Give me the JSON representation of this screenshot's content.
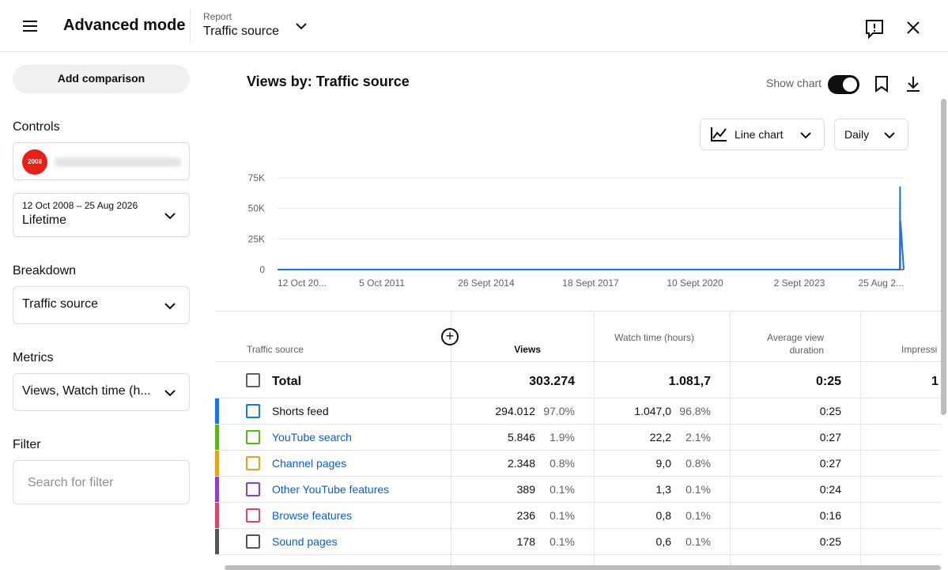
{
  "header": {
    "title": "Advanced mode",
    "report_label": "Report",
    "report_name": "Traffic source"
  },
  "sidebar": {
    "add_comparison": "Add comparison",
    "controls_label": "Controls",
    "channel_badge": "2008",
    "date_range": "12 Oct 2008 – 25 Aug 2026",
    "period": "Lifetime",
    "breakdown_label": "Breakdown",
    "breakdown_value": "Traffic source",
    "metrics_label": "Metrics",
    "metrics_value": "Views, Watch time (h...",
    "filter_label": "Filter",
    "filter_placeholder": "Search for filter"
  },
  "toolbar": {
    "title": "Views by: Traffic source",
    "show_chart": "Show chart",
    "chart_type": "Line chart",
    "granularity": "Daily"
  },
  "chart_data": {
    "type": "line",
    "x": [
      "2008-10-12",
      "2026-07-15",
      "2026-07-18",
      "2026-07-20",
      "2026-07-22",
      "2026-08-25"
    ],
    "series": [
      {
        "color": "#1a73e8",
        "values": [
          0,
          0,
          68000,
          0,
          40000,
          0
        ]
      },
      {
        "color": "#e05a6e",
        "values": [
          0,
          0,
          0,
          0,
          0,
          0
        ]
      }
    ],
    "xlim": [
      "2008-10-12",
      "2026-08-25"
    ],
    "xticks": [
      {
        "value": "2008-10-12",
        "label": "12 Oct 20..."
      },
      {
        "value": "2011-10-05",
        "label": "5 Oct 2011"
      },
      {
        "value": "2014-09-26",
        "label": "26 Sept 2014"
      },
      {
        "value": "2017-09-18",
        "label": "18 Sept 2017"
      },
      {
        "value": "2020-09-10",
        "label": "10 Sept 2020"
      },
      {
        "value": "2023-09-02",
        "label": "2 Sept 2023"
      },
      {
        "value": "2026-08-25",
        "label": "25 Aug 2..."
      }
    ],
    "ylim": [
      0,
      75000
    ],
    "yticks": [
      0,
      {
        "value": 25000,
        "label": "25K"
      },
      {
        "value": 50000,
        "label": "50K"
      },
      {
        "value": 75000,
        "label": "75K"
      }
    ],
    "grid": true
  },
  "table": {
    "columns": [
      "Traffic source",
      "Views",
      "Watch time (hours)",
      "Average view duration",
      "Impressi"
    ],
    "total": {
      "name": "Total",
      "views": "303.274",
      "watch_time": "1.081,7",
      "avg_duration": "0:25",
      "impressions": "1"
    },
    "rows": [
      {
        "name": "Shorts feed",
        "views": "294.012",
        "views_share": "97.0%",
        "watch_time": "1.047,0",
        "watch_share": "96.8%",
        "avg_duration": "0:25",
        "color": "#1a73e8"
      },
      {
        "name": "YouTube search",
        "views": "5.846",
        "views_share": "1.9%",
        "watch_time": "22,2",
        "watch_share": "2.1%",
        "avg_duration": "0:27",
        "color": "#5fb31f"
      },
      {
        "name": "Channel pages",
        "views": "2.348",
        "views_share": "0.8%",
        "watch_time": "9,0",
        "watch_share": "0.8%",
        "avg_duration": "0:27",
        "color": "#e8a21c"
      },
      {
        "name": "Other YouTube features",
        "views": "389",
        "views_share": "0.1%",
        "watch_time": "1,3",
        "watch_share": "0.1%",
        "avg_duration": "0:24",
        "color": "#8e3fc4"
      },
      {
        "name": "Browse features",
        "views": "236",
        "views_share": "0.1%",
        "watch_time": "0,8",
        "watch_share": "0.1%",
        "avg_duration": "0:16",
        "color": "#d9486a"
      },
      {
        "name": "Sound pages",
        "views": "178",
        "views_share": "0.1%",
        "watch_time": "0,6",
        "watch_share": "0.1%",
        "avg_duration": "0:25",
        "color": "#555555"
      }
    ]
  }
}
